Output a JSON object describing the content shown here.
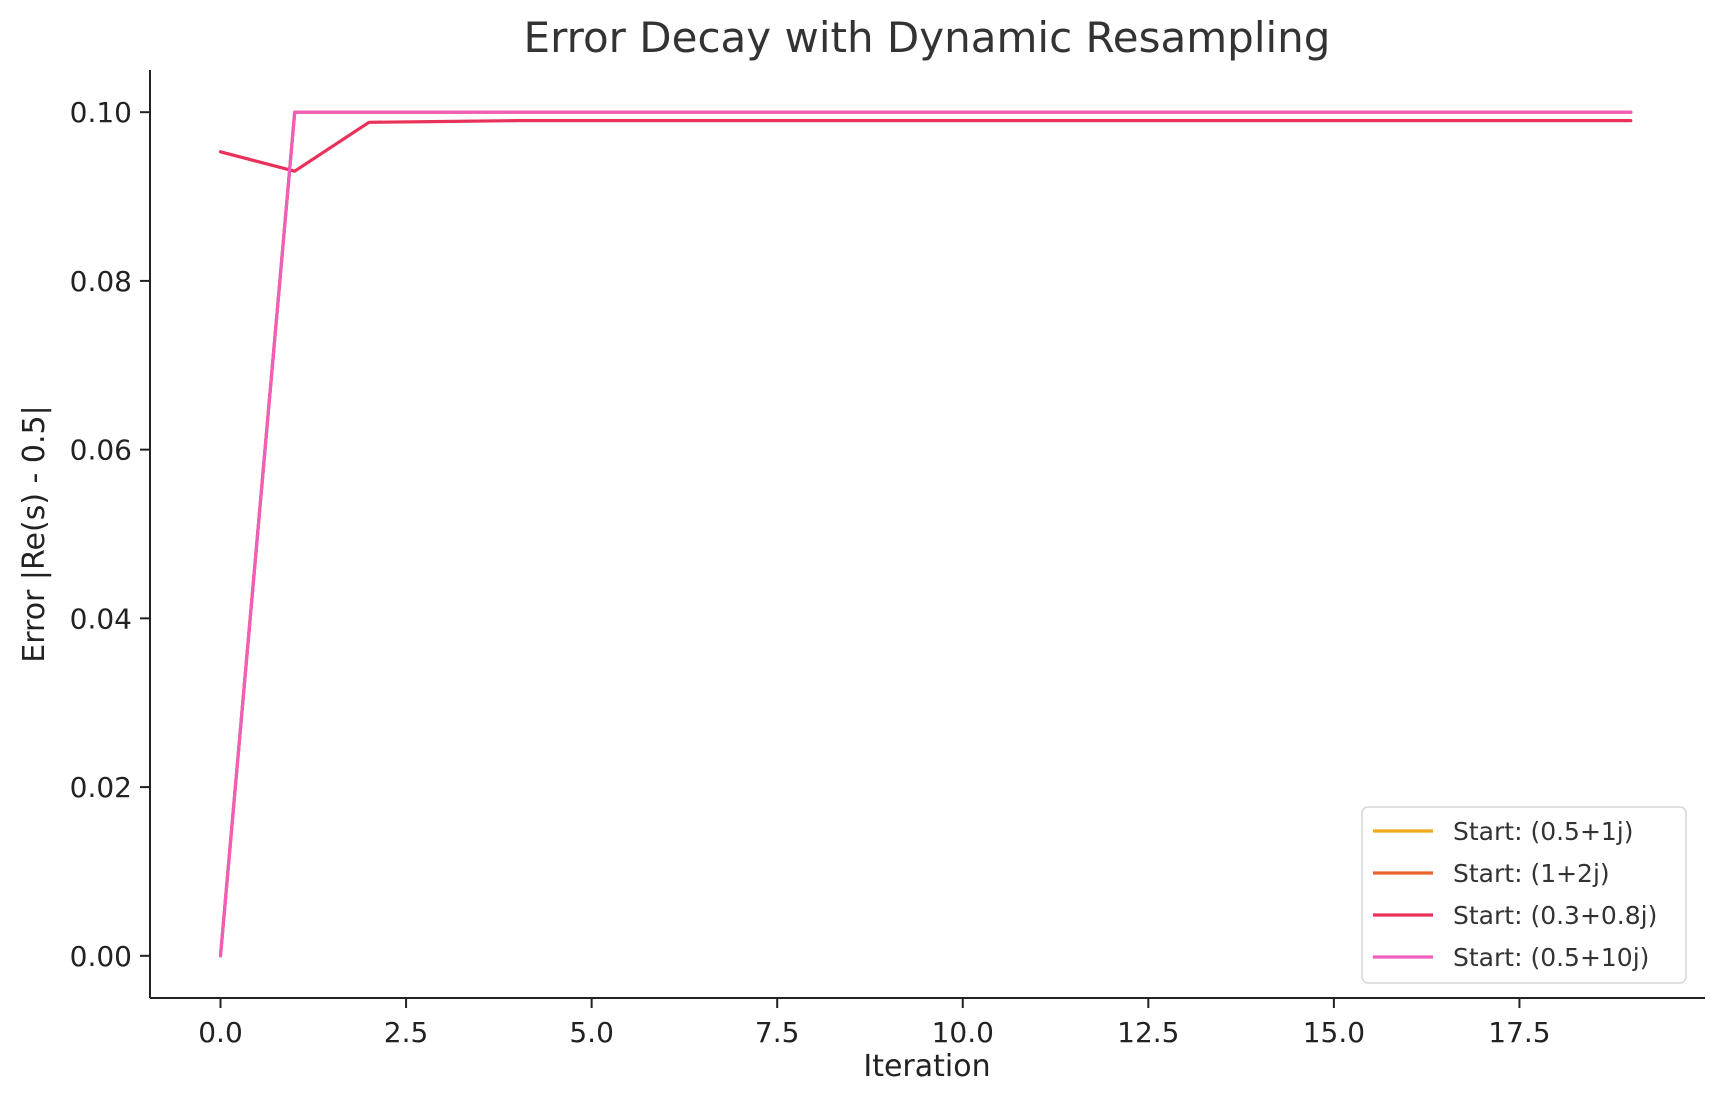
{
  "chart_data": {
    "type": "line",
    "title": "Error Decay with Dynamic Resampling",
    "xlabel": "Iteration",
    "ylabel": "Error |Re(s) - 0.5|",
    "xlim": [
      -0.95,
      20.0
    ],
    "ylim": [
      -0.005,
      0.105
    ],
    "xticks": [
      0.0,
      2.5,
      5.0,
      7.5,
      10.0,
      12.5,
      15.0,
      17.5
    ],
    "xtick_labels": [
      "0.0",
      "2.5",
      "5.0",
      "7.5",
      "10.0",
      "12.5",
      "15.0",
      "17.5"
    ],
    "yticks": [
      0.0,
      0.02,
      0.04,
      0.06,
      0.08,
      0.1
    ],
    "ytick_labels": [
      "0.00",
      "0.02",
      "0.04",
      "0.06",
      "0.08",
      "0.10"
    ],
    "grid": false,
    "legend_position": "bottom-right",
    "x": [
      0,
      1,
      2,
      3,
      4,
      5,
      6,
      7,
      8,
      9,
      10,
      11,
      12,
      13,
      14,
      15,
      16,
      17,
      18,
      19
    ],
    "series": [
      {
        "name": "Start: (0.5+1j)",
        "color": "#f2a81d",
        "values": [
          0.0,
          0.1,
          0.1,
          0.1,
          0.1,
          0.1,
          0.1,
          0.1,
          0.1,
          0.1,
          0.1,
          0.1,
          0.1,
          0.1,
          0.1,
          0.1,
          0.1,
          0.1,
          0.1,
          0.1
        ]
      },
      {
        "name": "Start: (1+2j)",
        "color": "#e8642c",
        "values": [
          0.0,
          0.1,
          0.1,
          0.1,
          0.1,
          0.1,
          0.1,
          0.1,
          0.1,
          0.1,
          0.1,
          0.1,
          0.1,
          0.1,
          0.1,
          0.1,
          0.1,
          0.1,
          0.1,
          0.1
        ]
      },
      {
        "name": "Start: (0.3+0.8j)",
        "color": "#e8325a",
        "values": [
          0.0953,
          0.093,
          0.0988,
          0.0989,
          0.099,
          0.099,
          0.099,
          0.099,
          0.099,
          0.099,
          0.099,
          0.099,
          0.099,
          0.099,
          0.099,
          0.099,
          0.099,
          0.099,
          0.099,
          0.099
        ]
      },
      {
        "name": "Start: (0.5+10j)",
        "color": "#f05dba",
        "values": [
          0.0,
          0.1,
          0.1,
          0.1,
          0.1,
          0.1,
          0.1,
          0.1,
          0.1,
          0.1,
          0.1,
          0.1,
          0.1,
          0.1,
          0.1,
          0.1,
          0.1,
          0.1,
          0.1,
          0.1
        ]
      }
    ]
  }
}
